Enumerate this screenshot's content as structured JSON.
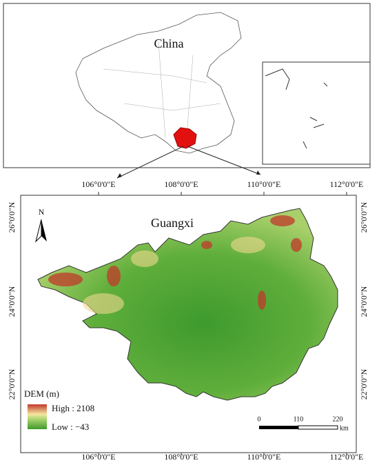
{
  "china_map": {
    "label": "China"
  },
  "guangxi_map": {
    "title": "Guangxi",
    "north_arrow": "N",
    "top_longitude_labels": [
      "106°0'0\"E",
      "108°0'0\"E",
      "110°0'0\"E",
      "112°0'0\"E"
    ],
    "bottom_longitude_labels": [
      "106°0'0\"E",
      "108°0'0\"E",
      "110°0'0\"E",
      "112°0'0\"E"
    ],
    "left_latitude_labels": [
      "26°0'0\"N",
      "24°0'0\"N",
      "22°0'0\"N"
    ],
    "right_latitude_labels": [
      "26°0'0\"N",
      "24°0'0\"N",
      "22°0'0\"N"
    ],
    "legend": {
      "title": "DEM (m)",
      "high": "High : 2108",
      "low": "Low : −43"
    },
    "scale_bar": {
      "ticks": [
        "0",
        "110",
        "220"
      ],
      "unit": "km"
    }
  }
}
